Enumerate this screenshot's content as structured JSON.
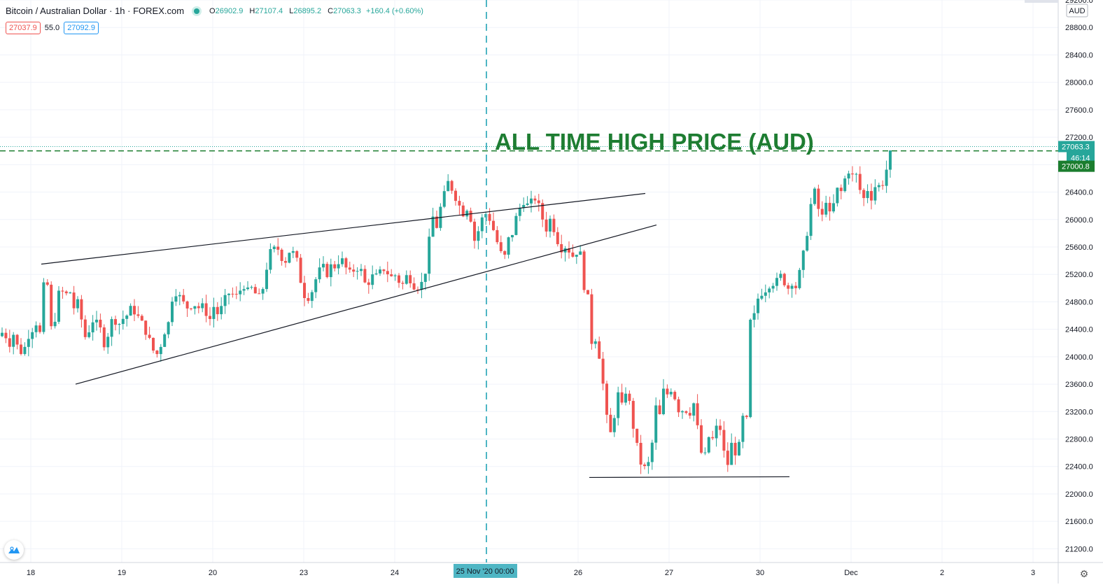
{
  "legend": {
    "symbol": "Bitcoin / Australian Dollar · 1h · FOREX.com",
    "open_label": "O",
    "open": "26902.9",
    "high_label": "H",
    "high": "27107.4",
    "low_label": "L",
    "low": "26895.2",
    "close_label": "C",
    "close": "27063.3",
    "change": "+160.4 (+0.60%)"
  },
  "quote": {
    "sell": "27037.9",
    "spread": "55.0",
    "buy": "27092.9"
  },
  "annotation": {
    "text": "ALL TIME HIGH PRICE (AUD)"
  },
  "price_axis": {
    "currency": "AUD",
    "current_price": "27063.3",
    "countdown": "46:14",
    "ath_price": "27000.8"
  },
  "time_axis": {
    "crosshair_label": "25 Nov '20   00:00"
  },
  "colors": {
    "up": "#26a69a",
    "down": "#ef5350",
    "grid": "#f0f3fa",
    "crosshair": "#4fb6c4",
    "ath_line": "#1b7d2e",
    "annotation": "#1e7d32"
  },
  "chart_data": {
    "type": "candlestick",
    "symbol": "Bitcoin / Australian Dollar",
    "interval": "1h",
    "ylim": [
      21000,
      29200
    ],
    "y_ticks": [
      21200,
      21600,
      22000,
      22400,
      22800,
      23200,
      23600,
      24000,
      24400,
      24800,
      25200,
      25600,
      26000,
      26400,
      26800,
      27200,
      27600,
      28000,
      28400,
      28800,
      29200
    ],
    "y_tick_labels": [
      "21200.0",
      "21600.0",
      "22000.0",
      "22400.0",
      "22800.0",
      "23200.0",
      "23600.0",
      "24000.0",
      "24400.0",
      "24800.0",
      "25200.0",
      "25600.0",
      "26000.0",
      "26400.0",
      "26800.0",
      "27200.0",
      "27600.0",
      "28000.0",
      "28400.0",
      "28800.0",
      "29200.0"
    ],
    "x_ticks": [
      "18",
      "19",
      "20",
      "23",
      "24",
      "26",
      "27",
      "30",
      "Dec",
      "2",
      "3"
    ],
    "hlines": [
      27000.8,
      27063.3
    ],
    "price_path": [
      [
        0,
        24300
      ],
      [
        6,
        24400
      ],
      [
        12,
        24150
      ],
      [
        20,
        24350
      ],
      [
        26,
        24100
      ],
      [
        33,
        24050
      ],
      [
        40,
        24300
      ],
      [
        46,
        24400
      ],
      [
        52,
        24500
      ],
      [
        56,
        24200
      ],
      [
        61,
        24900
      ],
      [
        66,
        25350
      ],
      [
        71,
        24500
      ],
      [
        76,
        24300
      ],
      [
        82,
        24900
      ],
      [
        88,
        24950
      ],
      [
        94,
        24900
      ],
      [
        100,
        24950
      ],
      [
        106,
        24700
      ],
      [
        112,
        24800
      ],
      [
        118,
        24450
      ],
      [
        124,
        24200
      ],
      [
        130,
        24550
      ],
      [
        136,
        24500
      ],
      [
        142,
        24450
      ],
      [
        150,
        24150
      ],
      [
        156,
        24400
      ],
      [
        162,
        24600
      ],
      [
        168,
        24450
      ],
      [
        175,
        24550
      ],
      [
        181,
        24600
      ],
      [
        187,
        24700
      ],
      [
        193,
        24650
      ],
      [
        199,
        24550
      ],
      [
        205,
        24450
      ],
      [
        211,
        24300
      ],
      [
        217,
        24150
      ],
      [
        222,
        24000
      ],
      [
        228,
        24100
      ],
      [
        234,
        24350
      ],
      [
        240,
        24450
      ],
      [
        246,
        24850
      ],
      [
        252,
        24950
      ],
      [
        258,
        24850
      ],
      [
        264,
        24750
      ],
      [
        270,
        24700
      ],
      [
        276,
        24800
      ],
      [
        282,
        24700
      ],
      [
        288,
        24750
      ],
      [
        294,
        24650
      ],
      [
        300,
        24550
      ],
      [
        306,
        24750
      ],
      [
        312,
        24600
      ],
      [
        318,
        24750
      ],
      [
        324,
        24900
      ],
      [
        330,
        24950
      ],
      [
        336,
        24850
      ],
      [
        342,
        24950
      ],
      [
        348,
        25050
      ],
      [
        354,
        24950
      ],
      [
        360,
        25000
      ],
      [
        366,
        24900
      ],
      [
        372,
        24850
      ],
      [
        378,
        25100
      ],
      [
        384,
        25500
      ],
      [
        390,
        25550
      ],
      [
        396,
        25600
      ],
      [
        402,
        25450
      ],
      [
        408,
        25400
      ],
      [
        414,
        25550
      ],
      [
        420,
        25500
      ],
      [
        426,
        25350
      ],
      [
        432,
        24950
      ],
      [
        438,
        24850
      ],
      [
        444,
        24900
      ],
      [
        450,
        25100
      ],
      [
        456,
        25250
      ],
      [
        462,
        25300
      ],
      [
        468,
        25200
      ],
      [
        474,
        25350
      ],
      [
        480,
        25300
      ],
      [
        486,
        25450
      ],
      [
        492,
        25350
      ],
      [
        498,
        25200
      ],
      [
        504,
        25250
      ],
      [
        510,
        25300
      ],
      [
        516,
        25250
      ],
      [
        522,
        25050
      ],
      [
        528,
        25100
      ],
      [
        534,
        25200
      ],
      [
        540,
        25150
      ],
      [
        546,
        25300
      ],
      [
        552,
        25250
      ],
      [
        558,
        25150
      ],
      [
        564,
        25200
      ],
      [
        570,
        25100
      ],
      [
        576,
        25050
      ],
      [
        582,
        25200
      ],
      [
        588,
        25100
      ],
      [
        594,
        25000
      ],
      [
        600,
        25050
      ],
      [
        606,
        25100
      ],
      [
        612,
        25600
      ],
      [
        618,
        26050
      ],
      [
        624,
        25900
      ],
      [
        630,
        26200
      ],
      [
        636,
        26400
      ],
      [
        642,
        26600
      ],
      [
        648,
        26350
      ],
      [
        654,
        26300
      ],
      [
        660,
        26050
      ],
      [
        666,
        26200
      ],
      [
        672,
        26050
      ],
      [
        678,
        25700
      ],
      [
        684,
        25850
      ],
      [
        690,
        26050
      ],
      [
        696,
        26100
      ],
      [
        702,
        25950
      ],
      [
        708,
        25750
      ],
      [
        714,
        25550
      ],
      [
        720,
        25400
      ],
      [
        726,
        25700
      ],
      [
        732,
        25800
      ],
      [
        738,
        26050
      ],
      [
        744,
        26200
      ],
      [
        750,
        26300
      ],
      [
        756,
        26150
      ],
      [
        762,
        26350
      ],
      [
        768,
        26250
      ],
      [
        774,
        26050
      ],
      [
        780,
        25850
      ],
      [
        786,
        26000
      ],
      [
        792,
        25850
      ],
      [
        798,
        25650
      ],
      [
        804,
        25550
      ],
      [
        810,
        25650
      ],
      [
        816,
        25450
      ],
      [
        822,
        25500
      ],
      [
        828,
        25600
      ],
      [
        834,
        25050
      ],
      [
        840,
        24850
      ],
      [
        846,
        24150
      ],
      [
        852,
        24300
      ],
      [
        858,
        23900
      ],
      [
        864,
        23400
      ],
      [
        870,
        22800
      ],
      [
        876,
        23000
      ],
      [
        882,
        23500
      ],
      [
        888,
        23250
      ],
      [
        894,
        23500
      ],
      [
        900,
        23300
      ],
      [
        906,
        22900
      ],
      [
        912,
        22600
      ],
      [
        918,
        22350
      ],
      [
        924,
        22400
      ],
      [
        930,
        22500
      ],
      [
        936,
        23300
      ],
      [
        942,
        23100
      ],
      [
        948,
        23500
      ],
      [
        954,
        23450
      ],
      [
        960,
        23550
      ],
      [
        966,
        23350
      ],
      [
        972,
        23150
      ],
      [
        978,
        23300
      ],
      [
        984,
        23100
      ],
      [
        990,
        23400
      ],
      [
        996,
        23000
      ],
      [
        1002,
        22600
      ],
      [
        1008,
        22550
      ],
      [
        1014,
        22900
      ],
      [
        1020,
        22750
      ],
      [
        1026,
        23100
      ],
      [
        1032,
        22800
      ],
      [
        1038,
        22300
      ],
      [
        1044,
        22750
      ],
      [
        1050,
        22600
      ],
      [
        1056,
        22700
      ],
      [
        1062,
        23150
      ],
      [
        1068,
        23050
      ],
      [
        1072,
        24500
      ],
      [
        1078,
        24600
      ],
      [
        1084,
        24900
      ],
      [
        1090,
        24950
      ],
      [
        1096,
        25000
      ],
      [
        1102,
        25100
      ],
      [
        1108,
        25050
      ],
      [
        1114,
        25200
      ],
      [
        1120,
        25100
      ],
      [
        1126,
        25000
      ],
      [
        1132,
        25100
      ],
      [
        1138,
        25000
      ],
      [
        1144,
        25300
      ],
      [
        1150,
        25600
      ],
      [
        1156,
        26000
      ],
      [
        1162,
        26500
      ],
      [
        1168,
        26200
      ],
      [
        1174,
        26000
      ],
      [
        1180,
        26300
      ],
      [
        1186,
        26050
      ],
      [
        1192,
        26250
      ],
      [
        1198,
        26500
      ],
      [
        1204,
        26350
      ],
      [
        1210,
        26800
      ],
      [
        1216,
        26600
      ],
      [
        1222,
        26700
      ],
      [
        1228,
        26450
      ],
      [
        1234,
        26300
      ],
      [
        1240,
        26450
      ],
      [
        1246,
        26300
      ],
      [
        1252,
        26550
      ],
      [
        1258,
        26450
      ],
      [
        1264,
        26600
      ],
      [
        1270,
        26900
      ],
      [
        1276,
        27063
      ]
    ],
    "trendlines": [
      {
        "name": "upper-wedge-line",
        "points": [
          [
            59,
            25350
          ],
          [
            922,
            26380
          ]
        ]
      },
      {
        "name": "lower-wedge-line",
        "points": [
          [
            108,
            23600
          ],
          [
            938,
            25920
          ]
        ]
      },
      {
        "name": "support-line",
        "points": [
          [
            842,
            22240
          ],
          [
            1128,
            22250
          ]
        ]
      }
    ]
  }
}
